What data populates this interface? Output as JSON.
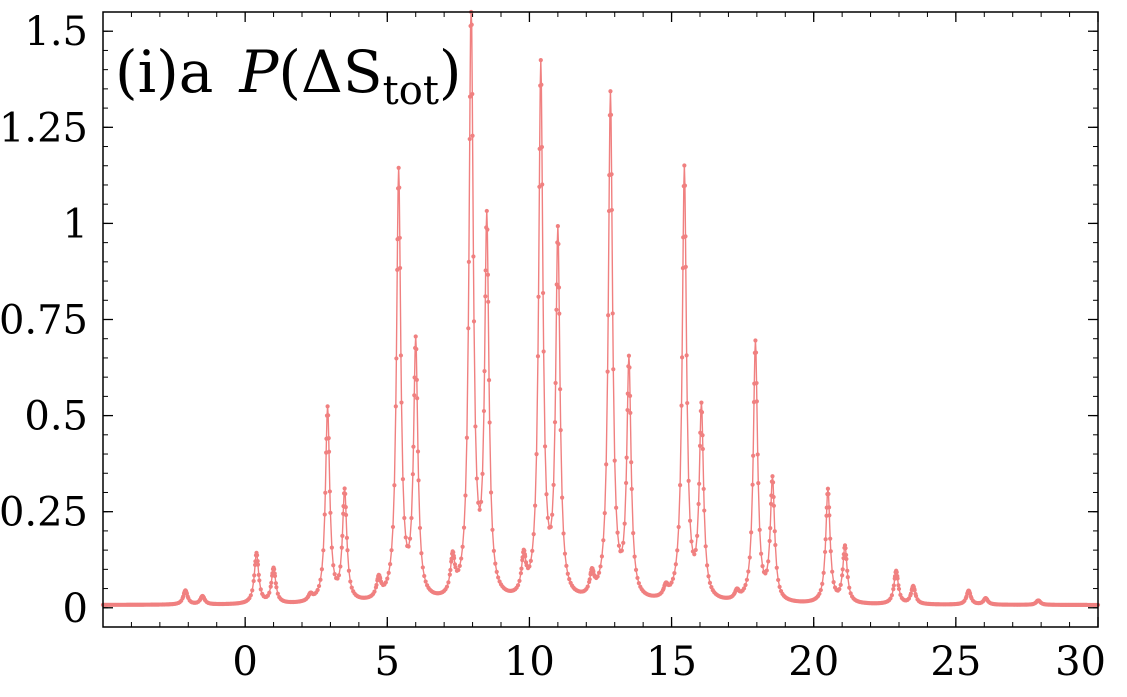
{
  "chart_data": {
    "type": "line",
    "title_prefix": "(i)a",
    "title_func": "P",
    "title_open": "(ΔS",
    "title_sub": "tot",
    "title_close": ")",
    "xlabel": "",
    "ylabel": "",
    "xlim": [
      -5,
      30
    ],
    "ylim": [
      -0.05,
      1.55
    ],
    "xticks": [
      0,
      5,
      10,
      15,
      20,
      25,
      30
    ],
    "xtick_labels": [
      "0",
      "5",
      "10",
      "15",
      "20",
      "25",
      "30"
    ],
    "yticks": [
      0,
      0.25,
      0.5,
      0.75,
      1,
      1.25,
      1.5
    ],
    "ytick_labels": [
      "0",
      "0.25",
      "0.5",
      "0.75",
      "1",
      "1.25",
      "1.5"
    ],
    "grid": false,
    "series_color": "#f08080",
    "baseline": 0.007,
    "peaks": [
      {
        "x": -2.1,
        "y": 0.04
      },
      {
        "x": -1.5,
        "y": 0.025
      },
      {
        "x": 0.4,
        "y": 0.135
      },
      {
        "x": 1.0,
        "y": 0.095
      },
      {
        "x": 2.3,
        "y": 0.02
      },
      {
        "x": 2.9,
        "y": 0.51
      },
      {
        "x": 3.5,
        "y": 0.29
      },
      {
        "x": 4.7,
        "y": 0.055
      },
      {
        "x": 5.4,
        "y": 1.12
      },
      {
        "x": 6.0,
        "y": 0.67
      },
      {
        "x": 7.3,
        "y": 0.1
      },
      {
        "x": 7.95,
        "y": 1.55
      },
      {
        "x": 8.5,
        "y": 0.98
      },
      {
        "x": 9.8,
        "y": 0.1
      },
      {
        "x": 10.4,
        "y": 1.39
      },
      {
        "x": 11.0,
        "y": 0.95
      },
      {
        "x": 12.2,
        "y": 0.06
      },
      {
        "x": 12.85,
        "y": 1.32
      },
      {
        "x": 13.5,
        "y": 0.62
      },
      {
        "x": 14.8,
        "y": 0.03
      },
      {
        "x": 15.45,
        "y": 1.13
      },
      {
        "x": 16.05,
        "y": 0.5
      },
      {
        "x": 17.3,
        "y": 0.025
      },
      {
        "x": 17.95,
        "y": 0.68
      },
      {
        "x": 18.55,
        "y": 0.32
      },
      {
        "x": 20.5,
        "y": 0.3
      },
      {
        "x": 21.1,
        "y": 0.15
      },
      {
        "x": 22.9,
        "y": 0.09
      },
      {
        "x": 23.5,
        "y": 0.05
      },
      {
        "x": 25.45,
        "y": 0.04
      },
      {
        "x": 26.05,
        "y": 0.02
      },
      {
        "x": 27.9,
        "y": 0.015
      }
    ]
  }
}
